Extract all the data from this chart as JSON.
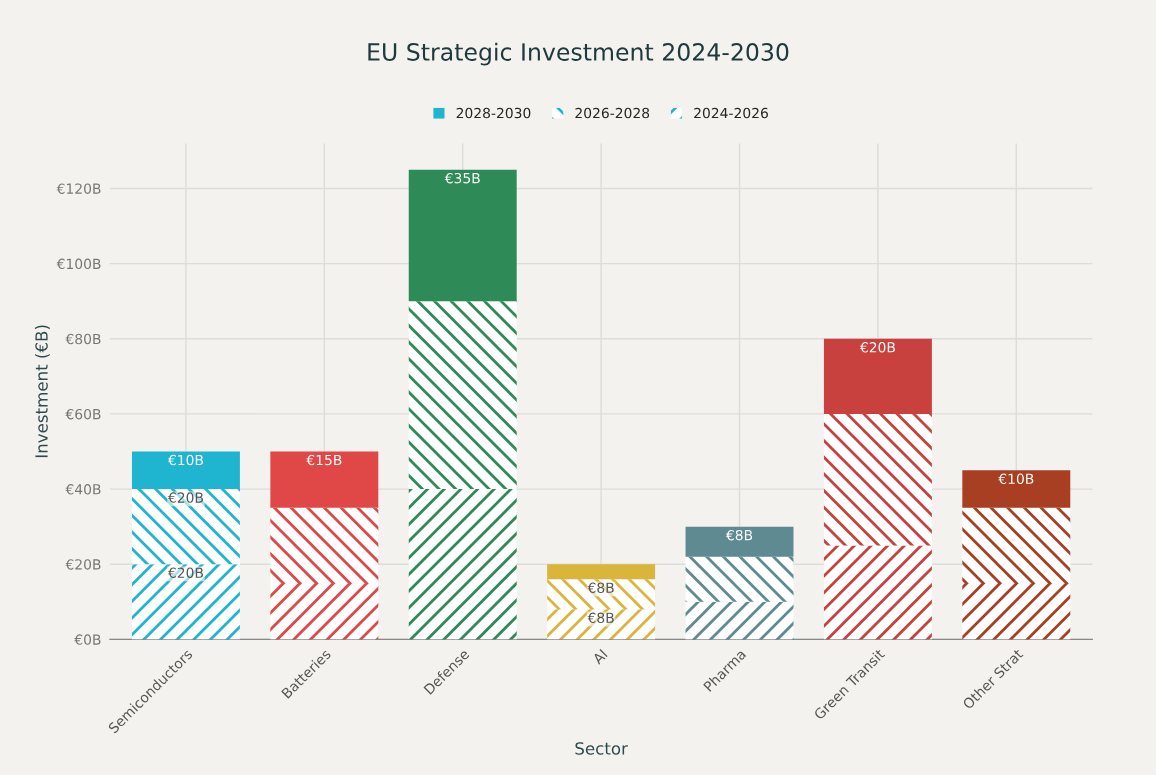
{
  "chart_data": {
    "type": "bar",
    "title": "EU Strategic Investment 2024-2030",
    "xlabel": "Sector",
    "ylabel": "Investment (€B)",
    "categories": [
      "Semiconductors",
      "Batteries",
      "Defense",
      "AI",
      "Pharma",
      "Green Transit",
      "Other Strat"
    ],
    "stacked": true,
    "grid": true,
    "legend": "top",
    "ylim": [
      0,
      132
    ],
    "yticks": [
      {
        "value": 0,
        "label": "€0B"
      },
      {
        "value": 20,
        "label": "€20B"
      },
      {
        "value": 40,
        "label": "€40B"
      },
      {
        "value": 60,
        "label": "€60B"
      },
      {
        "value": 80,
        "label": "€80B"
      },
      {
        "value": 100,
        "label": "€100B"
      },
      {
        "value": 120,
        "label": "€120B"
      }
    ],
    "series": [
      {
        "name": "2024-2026",
        "color": "#1fb5d0",
        "colors": [
          "#1fb5d0",
          "#e04848",
          "#2e8b57",
          "#d9b53b",
          "#5e8a92",
          "#c9413e",
          "#a83e22"
        ],
        "values": [
          20,
          15,
          40,
          8,
          10,
          25,
          15
        ],
        "value_labels": [
          "€20B",
          null,
          null,
          "€8B",
          null,
          null,
          null
        ]
      },
      {
        "name": "2026-2028",
        "color": "#1fb5d0",
        "colors": [
          "#1fb5d0",
          "#e04848",
          "#2e8b57",
          "#d9b53b",
          "#5e8a92",
          "#c9413e",
          "#a83e22"
        ],
        "values": [
          20,
          20,
          50,
          8,
          12,
          35,
          20
        ],
        "value_labels": [
          "€20B",
          null,
          null,
          "€8B",
          null,
          null,
          null
        ]
      },
      {
        "name": "2028-2030",
        "color": "#1fb5d0",
        "colors": [
          "#1fb5d0",
          "#e04848",
          "#2e8b57",
          "#d9b53b",
          "#5e8a92",
          "#c9413e",
          "#a83e22"
        ],
        "values": [
          10,
          15,
          35,
          4,
          8,
          20,
          10
        ],
        "value_labels": [
          "€10B",
          "€15B",
          "€35B",
          null,
          "€8B",
          "€20B",
          "€10B"
        ]
      }
    ]
  }
}
